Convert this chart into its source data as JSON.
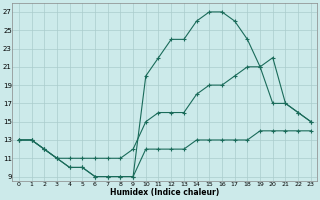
{
  "xlabel": "Humidex (Indice chaleur)",
  "background_color": "#cceaea",
  "grid_color": "#aacccc",
  "line_color": "#1a6b5a",
  "xlim": [
    -0.5,
    23.5
  ],
  "ylim": [
    8.5,
    28
  ],
  "xticks": [
    0,
    1,
    2,
    3,
    4,
    5,
    6,
    7,
    8,
    9,
    10,
    11,
    12,
    13,
    14,
    15,
    16,
    17,
    18,
    19,
    20,
    21,
    22,
    23
  ],
  "yticks": [
    9,
    11,
    13,
    15,
    17,
    19,
    21,
    23,
    25,
    27
  ],
  "curve1_x": [
    0,
    1,
    2,
    3,
    4,
    5,
    6,
    7,
    8,
    9,
    10,
    11,
    12,
    13,
    14,
    15,
    16,
    17,
    18,
    19,
    20,
    21,
    22,
    23
  ],
  "curve1_y": [
    13,
    13,
    12,
    11,
    10,
    10,
    9,
    9,
    9,
    9,
    12,
    12,
    12,
    12,
    13,
    13,
    13,
    13,
    13,
    14,
    14,
    14,
    14,
    14
  ],
  "curve2_x": [
    0,
    1,
    2,
    3,
    4,
    5,
    6,
    7,
    8,
    9,
    10,
    11,
    12,
    13,
    14,
    15,
    16,
    17,
    18,
    19,
    20,
    21,
    22,
    23
  ],
  "curve2_y": [
    13,
    13,
    12,
    11,
    11,
    11,
    11,
    11,
    11,
    12,
    15,
    16,
    16,
    16,
    18,
    19,
    19,
    20,
    21,
    21,
    17,
    17,
    16,
    15
  ],
  "curve3_x": [
    0,
    1,
    2,
    3,
    4,
    5,
    6,
    7,
    8,
    9,
    10,
    11,
    12,
    13,
    14,
    15,
    16,
    17,
    18,
    19,
    20,
    21,
    22,
    23
  ],
  "curve3_y": [
    13,
    13,
    12,
    11,
    10,
    10,
    9,
    9,
    9,
    9,
    20,
    22,
    24,
    24,
    26,
    27,
    27,
    26,
    24,
    21,
    22,
    17,
    16,
    15
  ]
}
